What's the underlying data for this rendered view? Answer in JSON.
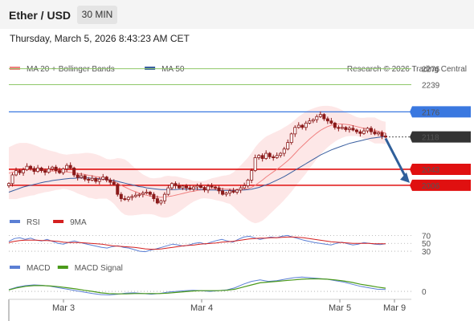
{
  "header": {
    "title": "Ether / USD",
    "timeframe": "30 MIN",
    "datetime": "Thursday, March 5, 2026 8:43:23 AM CET"
  },
  "colors": {
    "ma20": "#f08080",
    "ma50": "#3a5fa0",
    "rsi": "#5b7fd4",
    "ma9": "#d42020",
    "macd": "#5b7fd4",
    "macd_signal": "#4a9a1a",
    "resistance": "#8fc86a",
    "pivot": "#3a78e0",
    "support": "#e01010",
    "price": "#333333"
  },
  "chart_data": {
    "type": "candlestick",
    "instrument": "Ether / USD",
    "timeframe": "30 MIN",
    "x_ticks": [
      "Mar 3",
      "Mar 4",
      "Mar 5",
      "Mar 9"
    ],
    "ylim": [
      1950,
      2305
    ],
    "legend": [
      {
        "name": "MA 20 + Bollinger Bands",
        "color": "#f08080"
      },
      {
        "name": "MA 50",
        "color": "#3a5fa0"
      }
    ],
    "watermark": "Research © 2026 Trading Central",
    "levels": [
      {
        "value": 2276,
        "label": "2276",
        "type": "resistance"
      },
      {
        "value": 2239,
        "label": "2239",
        "type": "resistance"
      },
      {
        "value": 2176,
        "label": "2176",
        "type": "pivot"
      },
      {
        "value": 2118,
        "label": "2118",
        "type": "last"
      },
      {
        "value": 2043,
        "label": "2043",
        "type": "support"
      },
      {
        "value": 2006,
        "label": "2006",
        "type": "support"
      }
    ],
    "close": [
      2010,
      2030,
      2040,
      2035,
      2042,
      2050,
      2045,
      2038,
      2046,
      2040,
      2036,
      2044,
      2048,
      2040,
      2035,
      2044,
      2052,
      2046,
      2030,
      2024,
      2028,
      2020,
      2018,
      2022,
      2015,
      2020,
      2025,
      2018,
      2013,
      2008,
      1985,
      1975,
      1973,
      1978,
      1980,
      1983,
      1985,
      1988,
      1990,
      1985,
      1975,
      1965,
      1970,
      1985,
      2000,
      2010,
      2005,
      2000,
      2004,
      2000,
      1997,
      2002,
      2005,
      2001,
      1995,
      2004,
      2002,
      2000,
      1993,
      1985,
      1988,
      1993,
      1990,
      1995,
      2000,
      2005,
      2018,
      2040,
      2070,
      2075,
      2068,
      2080,
      2072,
      2070,
      2075,
      2080,
      2090,
      2105,
      2125,
      2140,
      2145,
      2140,
      2150,
      2155,
      2158,
      2165,
      2170,
      2160,
      2155,
      2150,
      2140,
      2138,
      2140,
      2135,
      2138,
      2134,
      2130,
      2126,
      2132,
      2138,
      2130,
      2125,
      2128,
      2120,
      2118
    ],
    "ma20": [
      2034,
      2036,
      2038,
      2040,
      2041,
      2042,
      2042,
      2041,
      2041,
      2040,
      2040,
      2039,
      2039,
      2039,
      2038,
      2038,
      2037,
      2036,
      2035,
      2033,
      2032,
      2031,
      2029,
      2028,
      2026,
      2025,
      2023,
      2021,
      2018,
      2015,
      2011,
      2006,
      2002,
      1998,
      1994,
      1991,
      1988,
      1985,
      1983,
      1981,
      1980,
      1979,
      1978,
      1979,
      1980,
      1981,
      1983,
      1985,
      1987,
      1989,
      1991,
      1992,
      1994,
      1995,
      1996,
      1997,
      1998,
      1998,
      1998,
      1998,
      1997,
      1997,
      1996,
      1996,
      1996,
      1997,
      1998,
      2001,
      2006,
      2012,
      2018,
      2025,
      2031,
      2037,
      2043,
      2049,
      2056,
      2063,
      2071,
      2080,
      2089,
      2097,
      2105,
      2113,
      2120,
      2127,
      2133,
      2138,
      2142,
      2145,
      2147,
      2148,
      2148,
      2147,
      2146,
      2144,
      2142,
      2140,
      2138,
      2137,
      2135,
      2133,
      2131,
      2129,
      2127
    ],
    "ma50": [
      1990,
      1993,
      1996,
      1999,
      2002,
      2004,
      2006,
      2008,
      2010,
      2012,
      2014,
      2015,
      2017,
      2018,
      2019,
      2020,
      2021,
      2022,
      2022,
      2023,
      2023,
      2023,
      2023,
      2022,
      2022,
      2021,
      2020,
      2019,
      2018,
      2017,
      2015,
      2013,
      2011,
      2009,
      2007,
      2005,
      2003,
      2002,
      2000,
      1999,
      1998,
      1997,
      1996,
      1996,
      1996,
      1996,
      1996,
      1997,
      1997,
      1997,
      1997,
      1997,
      1997,
      1996,
      1996,
      1995,
      1995,
      1995,
      1994,
      1994,
      1994,
      1994,
      1994,
      1994,
      1995,
      1995,
      1996,
      1997,
      1999,
      2001,
      2004,
      2007,
      2010,
      2014,
      2018,
      2022,
      2026,
      2031,
      2036,
      2041,
      2046,
      2051,
      2056,
      2061,
      2066,
      2071,
      2076,
      2080,
      2084,
      2088,
      2091,
      2094,
      2097,
      2100,
      2103,
      2105,
      2107,
      2109,
      2111,
      2113,
      2115,
      2116,
      2117,
      2118,
      2119
    ],
    "bb_width": [
      60,
      62,
      64,
      64,
      63,
      62,
      60,
      58,
      55,
      52,
      50,
      48,
      46,
      44,
      42,
      40,
      40,
      42,
      44,
      46,
      48,
      50,
      52,
      52,
      52,
      50,
      48,
      46,
      48,
      52,
      58,
      62,
      64,
      62,
      58,
      54,
      50,
      46,
      44,
      42,
      42,
      44,
      46,
      48,
      48,
      46,
      44,
      40,
      36,
      32,
      28,
      24,
      22,
      20,
      20,
      22,
      24,
      26,
      28,
      30,
      32,
      34,
      40,
      48,
      56,
      64,
      72,
      80,
      88,
      92,
      94,
      94,
      92,
      90,
      88,
      86,
      84,
      82,
      80,
      78,
      76,
      74,
      72,
      68,
      64,
      60,
      56,
      52,
      48,
      44,
      40,
      36,
      32,
      28,
      26,
      24,
      22,
      22,
      24,
      26,
      28,
      30,
      28,
      26,
      26
    ],
    "rsi": {
      "legend": [
        {
          "name": "RSI",
          "color": "#5b7fd4"
        },
        {
          "name": "9MA",
          "color": "#d42020"
        }
      ],
      "levels": [
        "70",
        "50",
        "30"
      ],
      "level_values": [
        70,
        50,
        30
      ],
      "ylim": [
        20,
        85
      ],
      "rsi_values": [
        55,
        62,
        64,
        60,
        63,
        58,
        56,
        60,
        55,
        50,
        48,
        53,
        56,
        52,
        49,
        46,
        43,
        40,
        38,
        42,
        44,
        40,
        38,
        34,
        30,
        29,
        33,
        36,
        40,
        44,
        48,
        46,
        43,
        46,
        50,
        52,
        48,
        53,
        57,
        60,
        56,
        53,
        60,
        66,
        68,
        64,
        60,
        63,
        66,
        64,
        68,
        70,
        66,
        62,
        58,
        55,
        52,
        50,
        48,
        46,
        50,
        53,
        49,
        46,
        48,
        52,
        50,
        48,
        47,
        49
      ],
      "ma9_values": [
        52,
        55,
        57,
        58,
        58,
        58,
        57,
        57,
        56,
        55,
        53,
        52,
        52,
        52,
        51,
        50,
        49,
        48,
        46,
        44,
        43,
        42,
        41,
        40,
        38,
        36,
        35,
        35,
        36,
        38,
        40,
        42,
        44,
        45,
        46,
        48,
        49,
        50,
        51,
        53,
        54,
        55,
        57,
        59,
        61,
        62,
        63,
        63,
        64,
        64,
        65,
        66,
        66,
        65,
        64,
        62,
        60,
        58,
        56,
        54,
        53,
        52,
        51,
        50,
        50,
        50,
        50,
        49,
        49,
        49
      ]
    },
    "macd": {
      "legend": [
        {
          "name": "MACD",
          "color": "#5b7fd4"
        },
        {
          "name": "MACD Signal",
          "color": "#4a9a1a"
        }
      ],
      "zero_label": "0",
      "ylim": [
        -20,
        45
      ],
      "macd_values": [
        5,
        12,
        16,
        18,
        17,
        14,
        10,
        6,
        2,
        -2,
        -6,
        -9,
        -10,
        -8,
        -5,
        -4,
        -6,
        -8,
        -6,
        -2,
        0,
        2,
        3,
        2,
        0,
        2,
        4,
        10,
        20,
        28,
        32,
        28,
        30,
        34,
        38,
        40,
        38,
        36,
        34,
        30,
        26,
        20,
        14,
        10,
        6,
        5
      ],
      "signal_values": [
        4,
        10,
        14,
        16,
        16,
        15,
        13,
        10,
        7,
        3,
        0,
        -4,
        -6,
        -7,
        -7,
        -6,
        -6,
        -6,
        -6,
        -5,
        -3,
        -1,
        1,
        2,
        2,
        2,
        3,
        6,
        12,
        18,
        24,
        26,
        28,
        30,
        32,
        34,
        35,
        35,
        34,
        32,
        29,
        25,
        20,
        16,
        12,
        9
      ]
    }
  }
}
